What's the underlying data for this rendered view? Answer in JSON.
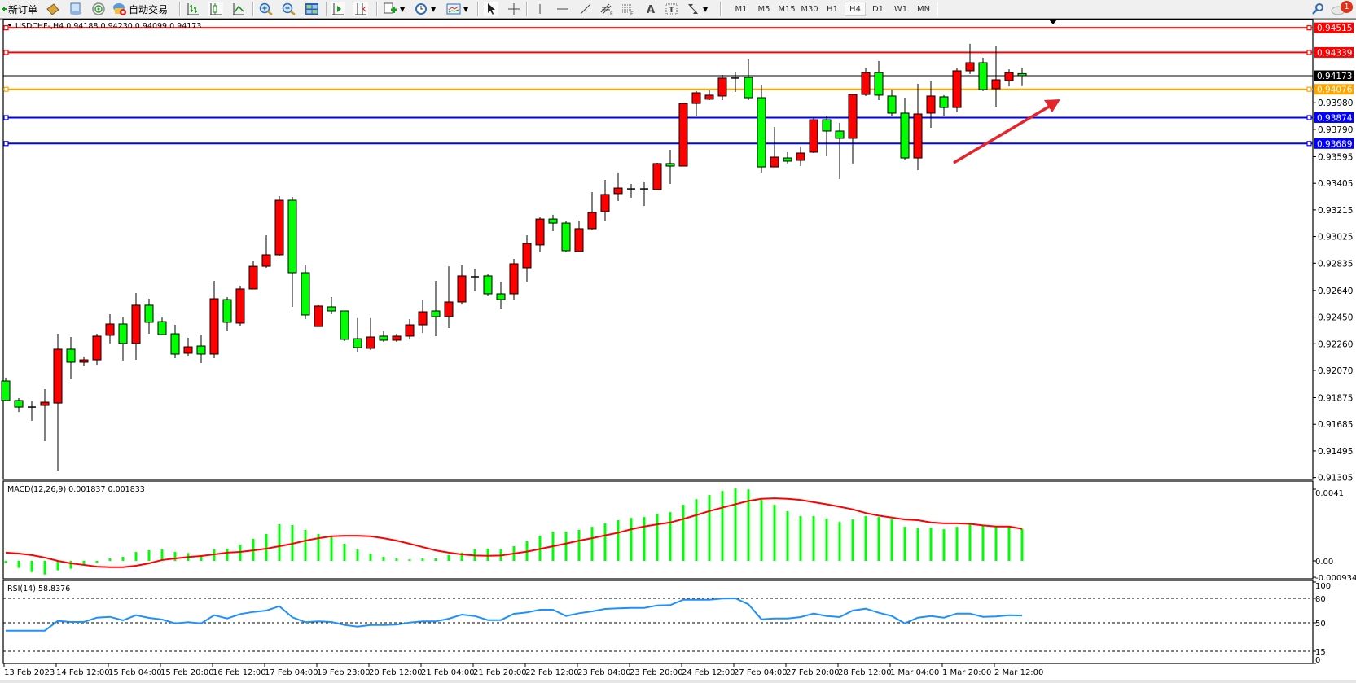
{
  "toolbar": {
    "new_order_label": "新订单",
    "autotrade_label": "自动交易",
    "timeframes": [
      "M1",
      "M5",
      "M15",
      "M30",
      "H1",
      "H4",
      "D1",
      "W1",
      "MN"
    ],
    "active_timeframe": "H4",
    "notification_count": "1",
    "icons": [
      "new-order-icon",
      "market-watch-icon",
      "data-window-icon",
      "signals-icon",
      "autotrade-icon",
      "bar-chart-icon",
      "candlestick-icon",
      "line-chart-icon",
      "zoom-in-icon",
      "zoom-out-icon",
      "tile-windows-icon",
      "auto-scroll-icon",
      "chart-shift-icon",
      "indicators-icon",
      "periods-icon",
      "templates-icon",
      "cursor-icon",
      "crosshair-icon",
      "vertical-line-icon",
      "horizontal-line-icon",
      "trendline-icon",
      "fibonacci-expansion-icon",
      "fibonacci-fan-icon",
      "text-icon",
      "text-label-icon",
      "arrows-icon",
      "search-icon",
      "notifications-icon"
    ]
  },
  "chart_data": {
    "type": "candlestick",
    "title": "USDCHF-,H4  0.94188 0.94230 0.94099 0.94173",
    "up_color": "#ff0000",
    "down_color": "#00ff00",
    "price_ticks": [
      "0.93980",
      "0.93790",
      "0.93595",
      "0.93405",
      "0.93215",
      "0.93025",
      "0.92835",
      "0.92640",
      "0.92450",
      "0.92260",
      "0.92070",
      "0.91875",
      "0.91685",
      "0.91495",
      "0.91305"
    ],
    "ylim": [
      0.91305,
      0.9456
    ],
    "time_labels": [
      "13 Feb 2023",
      "14 Feb 12:00",
      "15 Feb 04:00",
      "15 Feb 20:00",
      "16 Feb 12:00",
      "17 Feb 04:00",
      "19 Feb 23:00",
      "20 Feb 12:00",
      "21 Feb 04:00",
      "21 Feb 20:00",
      "22 Feb 12:00",
      "23 Feb 04:00",
      "23 Feb 20:00",
      "24 Feb 12:00",
      "27 Feb 04:00",
      "27 Feb 20:00",
      "28 Feb 12:00",
      "1 Mar 04:00",
      "1 Mar 20:00",
      "2 Mar 12:00"
    ],
    "ohlc": [
      [
        0.91994,
        0.92018,
        0.91849,
        0.91855
      ],
      [
        0.91855,
        0.91872,
        0.91773,
        0.91808
      ],
      [
        0.91808,
        0.91855,
        0.9171,
        0.91808
      ],
      [
        0.9182,
        0.91936,
        0.91564,
        0.91843
      ],
      [
        0.91837,
        0.92331,
        0.91355,
        0.92221
      ],
      [
        0.92221,
        0.92308,
        0.92006,
        0.92128
      ],
      [
        0.92128,
        0.92169,
        0.92105,
        0.92145
      ],
      [
        0.92145,
        0.92331,
        0.9211,
        0.92314
      ],
      [
        0.9232,
        0.92471,
        0.92262,
        0.92401
      ],
      [
        0.92401,
        0.92453,
        0.9214,
        0.92262
      ],
      [
        0.92262,
        0.92622,
        0.92145,
        0.92535
      ],
      [
        0.92535,
        0.92581,
        0.92331,
        0.92413
      ],
      [
        0.92418,
        0.92447,
        0.92325,
        0.92325
      ],
      [
        0.92331,
        0.92395,
        0.92157,
        0.92186
      ],
      [
        0.92192,
        0.92302,
        0.92174,
        0.92238
      ],
      [
        0.92244,
        0.92325,
        0.92122,
        0.92186
      ],
      [
        0.92186,
        0.92709,
        0.92157,
        0.92581
      ],
      [
        0.92575,
        0.92593,
        0.92349,
        0.92413
      ],
      [
        0.92407,
        0.92674,
        0.92389,
        0.92651
      ],
      [
        0.92651,
        0.92848,
        0.92651,
        0.92813
      ],
      [
        0.92813,
        0.93034,
        0.92802,
        0.92895
      ],
      [
        0.92895,
        0.93313,
        0.92883,
        0.93284
      ],
      [
        0.93284,
        0.93307,
        0.92523,
        0.92767
      ],
      [
        0.92767,
        0.92825,
        0.92436,
        0.92465
      ],
      [
        0.92383,
        0.92535,
        0.92383,
        0.92529
      ],
      [
        0.92523,
        0.92593,
        0.92471,
        0.92494
      ],
      [
        0.92494,
        0.92494,
        0.92279,
        0.92291
      ],
      [
        0.92296,
        0.92442,
        0.92203,
        0.92232
      ],
      [
        0.92227,
        0.92442,
        0.92215,
        0.92308
      ],
      [
        0.92314,
        0.92349,
        0.92273,
        0.92285
      ],
      [
        0.92285,
        0.92331,
        0.92273,
        0.92314
      ],
      [
        0.92314,
        0.92436,
        0.92291,
        0.92395
      ],
      [
        0.92395,
        0.92575,
        0.92337,
        0.92488
      ],
      [
        0.92494,
        0.92709,
        0.92314,
        0.92453
      ],
      [
        0.92453,
        0.92813,
        0.92372,
        0.92558
      ],
      [
        0.92558,
        0.92819,
        0.9254,
        0.92744
      ],
      [
        0.92738,
        0.9279,
        0.92639,
        0.92738
      ],
      [
        0.92744,
        0.92755,
        0.92604,
        0.92616
      ],
      [
        0.92616,
        0.92697,
        0.92511,
        0.92575
      ],
      [
        0.92616,
        0.92866,
        0.92575,
        0.92831
      ],
      [
        0.92802,
        0.93034,
        0.92697,
        0.92976
      ],
      [
        0.92965,
        0.93162,
        0.92912,
        0.9315
      ],
      [
        0.9315,
        0.9318,
        0.93063,
        0.93121
      ],
      [
        0.93121,
        0.93133,
        0.92912,
        0.92924
      ],
      [
        0.92918,
        0.93139,
        0.92912,
        0.93081
      ],
      [
        0.93081,
        0.93342,
        0.93069,
        0.93197
      ],
      [
        0.93203,
        0.93429,
        0.93133,
        0.93325
      ],
      [
        0.93331,
        0.93482,
        0.93278,
        0.93371
      ],
      [
        0.93365,
        0.934,
        0.93302,
        0.93365
      ],
      [
        0.93365,
        0.93418,
        0.93243,
        0.93365
      ],
      [
        0.9336,
        0.93551,
        0.9336,
        0.93546
      ],
      [
        0.93546,
        0.93644,
        0.934,
        0.93528
      ],
      [
        0.93528,
        0.93975,
        0.93528,
        0.93975
      ],
      [
        0.93975,
        0.94063,
        0.93883,
        0.94051
      ],
      [
        0.94005,
        0.94068,
        0.93999,
        0.94034
      ],
      [
        0.94028,
        0.94179,
        0.93999,
        0.94156
      ],
      [
        0.94156,
        0.94202,
        0.94057,
        0.94156
      ],
      [
        0.94161,
        0.94289,
        0.93999,
        0.94016
      ],
      [
        0.94016,
        0.94109,
        0.93482,
        0.93522
      ],
      [
        0.93522,
        0.93807,
        0.93522,
        0.93592
      ],
      [
        0.93586,
        0.93627,
        0.93546,
        0.93563
      ],
      [
        0.93569,
        0.93668,
        0.93528,
        0.93621
      ],
      [
        0.93627,
        0.93871,
        0.93621,
        0.93859
      ],
      [
        0.93859,
        0.93888,
        0.93598,
        0.93778
      ],
      [
        0.93778,
        0.93836,
        0.93435,
        0.93726
      ],
      [
        0.93726,
        0.94045,
        0.93546,
        0.94039
      ],
      [
        0.94039,
        0.94225,
        0.94028,
        0.94196
      ],
      [
        0.94196,
        0.94278,
        0.93999,
        0.94034
      ],
      [
        0.94028,
        0.94074,
        0.93883,
        0.93906
      ],
      [
        0.93906,
        0.94016,
        0.93569,
        0.93586
      ],
      [
        0.93586,
        0.94115,
        0.93499,
        0.939
      ],
      [
        0.93906,
        0.94132,
        0.93801,
        0.94028
      ],
      [
        0.94022,
        0.94034,
        0.93888,
        0.93946
      ],
      [
        0.93946,
        0.94231,
        0.93912,
        0.94208
      ],
      [
        0.94208,
        0.944,
        0.94185,
        0.94266
      ],
      [
        0.94266,
        0.94301,
        0.94063,
        0.94074
      ],
      [
        0.9408,
        0.94388,
        0.93952,
        0.94144
      ],
      [
        0.94138,
        0.94219,
        0.94097,
        0.94196
      ],
      [
        0.94188,
        0.9423,
        0.94099,
        0.94173
      ]
    ],
    "horizontal_lines": [
      {
        "price": 0.94515,
        "label": "0.94515",
        "color": "#ff0000"
      },
      {
        "price": 0.94339,
        "label": "0.94339",
        "color": "#ff0000"
      },
      {
        "price": 0.94173,
        "label": "0.94173",
        "color": "#000000"
      },
      {
        "price": 0.94076,
        "label": "0.94076",
        "color": "#ffa500"
      },
      {
        "price": 0.93874,
        "label": "0.93874",
        "color": "#0000ff"
      },
      {
        "price": 0.93689,
        "label": "0.93689",
        "color": "#0000ff"
      }
    ],
    "annotation_arrow": {
      "color": "#e8232a",
      "direction": "up-right"
    },
    "macd": {
      "title": "MACD(12,26,9) 0.001837 0.001833",
      "axis_labels": [
        "0.0041",
        "0.00",
        "-0.000934"
      ],
      "ylim": [
        -0.000934,
        0.0041
      ],
      "histogram_color": "#00ff00",
      "signal_color": "#ff0000",
      "histogram": [
        -0.00012,
        -0.0004,
        -0.00064,
        -0.00078,
        -0.00054,
        -0.00045,
        -0.00025,
        -0.00012,
        0.00014,
        0.00023,
        0.00051,
        0.00061,
        0.00065,
        0.00051,
        0.00045,
        0.00033,
        0.00065,
        0.0007,
        0.00093,
        0.00126,
        0.00154,
        0.0021,
        0.00205,
        0.00177,
        0.00154,
        0.0014,
        0.00098,
        0.00065,
        0.00042,
        0.00023,
        0.00014,
        9e-05,
        0.00014,
        0.00014,
        0.00033,
        0.00047,
        0.00065,
        0.0007,
        0.00065,
        0.00084,
        0.00112,
        0.00144,
        0.00167,
        0.00167,
        0.00177,
        0.00195,
        0.00214,
        0.00233,
        0.00246,
        0.00251,
        0.0027,
        0.00279,
        0.00321,
        0.00353,
        0.00377,
        0.004,
        0.00414,
        0.00409,
        0.00349,
        0.00321,
        0.00284,
        0.00256,
        0.00256,
        0.00242,
        0.00223,
        0.00237,
        0.00256,
        0.00251,
        0.00237,
        0.00195,
        0.00186,
        0.00191,
        0.00181,
        0.00195,
        0.00209,
        0.00205,
        0.00197,
        0.00197,
        0.001837
      ],
      "signal": [
        0.00047,
        0.00042,
        0.00033,
        0.00019,
        0,
        -0.00014,
        -0.00023,
        -0.00033,
        -0.00036,
        -0.00036,
        -0.00028,
        -0.00014,
        5e-05,
        0.00014,
        0.00022,
        0.00028,
        0.00037,
        0.00047,
        0.00051,
        0.0006,
        0.0007,
        0.00084,
        0.00098,
        0.00116,
        0.0013,
        0.00141,
        0.00144,
        0.00144,
        0.00141,
        0.0013,
        0.00116,
        0.00098,
        0.00079,
        0.0006,
        0.00047,
        0.00037,
        0.00031,
        0.00029,
        0.00031,
        0.00042,
        0.00053,
        0.00068,
        0.00084,
        0.00099,
        0.00116,
        0.0013,
        0.00146,
        0.00161,
        0.00181,
        0.00197,
        0.00209,
        0.0022,
        0.0024,
        0.00262,
        0.00285,
        0.00305,
        0.00324,
        0.00343,
        0.00355,
        0.00358,
        0.00355,
        0.00349,
        0.00336,
        0.00324,
        0.0031,
        0.00295,
        0.00274,
        0.00259,
        0.00248,
        0.00237,
        0.00233,
        0.0022,
        0.00215,
        0.00215,
        0.00212,
        0.00203,
        0.00197,
        0.00197,
        0.001833
      ]
    },
    "rsi": {
      "title": "RSI(14) 58.8376",
      "axis_labels": [
        "100",
        "80",
        "50",
        "15",
        "0"
      ],
      "levels": [
        80,
        50,
        15
      ],
      "ylim": [
        0,
        100
      ],
      "color": "#1e90ff",
      "values": [
        40.3,
        40.3,
        40.3,
        40.3,
        52.3,
        51,
        51,
        56.3,
        57.3,
        53,
        59.3,
        56,
        54,
        49.3,
        50.7,
        49.3,
        59.3,
        55.3,
        60.7,
        63.3,
        65,
        70.3,
        56.7,
        50.7,
        51.7,
        51,
        47.3,
        45.3,
        47.3,
        47.3,
        47.7,
        50.3,
        51.7,
        51.7,
        55,
        60,
        58.3,
        53.3,
        53.3,
        61,
        62.7,
        66,
        66,
        58.3,
        61.7,
        64,
        67,
        67.7,
        68.3,
        68.3,
        71.3,
        71.7,
        78.3,
        78.3,
        78.3,
        79.7,
        80,
        72.7,
        54.3,
        55.3,
        55.3,
        57,
        61.3,
        58.3,
        57,
        65,
        67.3,
        62.3,
        58.3,
        49.3,
        56.3,
        58.3,
        56.3,
        61.3,
        61.3,
        57.3,
        57.7,
        59.3,
        58.84
      ]
    }
  }
}
